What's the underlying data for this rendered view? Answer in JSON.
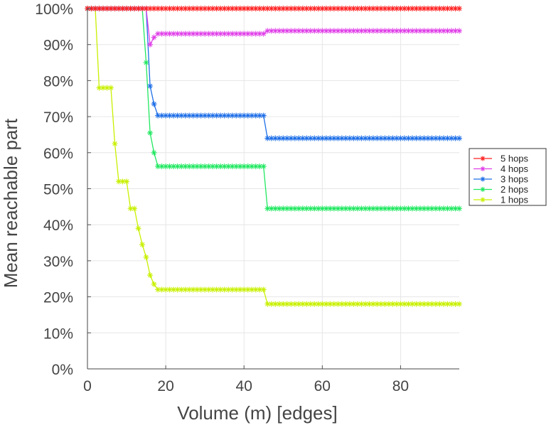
{
  "chart_data": {
    "type": "line",
    "title": "",
    "xlabel": "Volume (m) [edges]",
    "ylabel": "Mean reachable part",
    "xlim": [
      0,
      95
    ],
    "ylim": [
      0,
      100
    ],
    "xticks": [
      0,
      20,
      40,
      60,
      80
    ],
    "yticks": [
      0,
      10,
      20,
      30,
      40,
      50,
      60,
      70,
      80,
      90,
      100
    ],
    "ytick_labels": [
      "0%",
      "10%",
      "20%",
      "30%",
      "40%",
      "50%",
      "60%",
      "70%",
      "80%",
      "90%",
      "100%"
    ],
    "grid": true,
    "legend_position": "right",
    "series": [
      {
        "name": "5 hops",
        "color": "#ff2020",
        "points": [
          [
            0,
            100
          ],
          [
            95,
            100
          ]
        ]
      },
      {
        "name": "4 hops",
        "color": "#e040e8",
        "points": [
          [
            0,
            100
          ],
          [
            15,
            100
          ],
          [
            16,
            90
          ],
          [
            17,
            92
          ],
          [
            18,
            93
          ],
          [
            45,
            93
          ],
          [
            46,
            93.8
          ],
          [
            95,
            93.8
          ]
        ]
      },
      {
        "name": "3 hops",
        "color": "#1f6fe8",
        "points": [
          [
            0,
            100
          ],
          [
            15,
            100
          ],
          [
            16,
            78.5
          ],
          [
            17,
            73.5
          ],
          [
            18,
            70.3
          ],
          [
            45,
            70.3
          ],
          [
            46,
            64
          ],
          [
            95,
            64
          ]
        ]
      },
      {
        "name": "2 hops",
        "color": "#20e860",
        "points": [
          [
            0,
            100
          ],
          [
            14,
            100
          ],
          [
            15,
            85
          ],
          [
            16,
            65.5
          ],
          [
            17,
            60
          ],
          [
            18,
            56.2
          ],
          [
            45,
            56.2
          ],
          [
            46,
            44.5
          ],
          [
            95,
            44.5
          ]
        ]
      },
      {
        "name": "1 hops",
        "color": "#c8f000",
        "points": [
          [
            0,
            100
          ],
          [
            2,
            100
          ],
          [
            3,
            78
          ],
          [
            6,
            78
          ],
          [
            7,
            62.5
          ],
          [
            8,
            52
          ],
          [
            10,
            52
          ],
          [
            11,
            44.5
          ],
          [
            12,
            44.5
          ],
          [
            13,
            39
          ],
          [
            14,
            34.5
          ],
          [
            15,
            31
          ],
          [
            16,
            26
          ],
          [
            17,
            23.5
          ],
          [
            18,
            22
          ],
          [
            45,
            22
          ],
          [
            46,
            18
          ],
          [
            95,
            18
          ]
        ]
      }
    ]
  }
}
